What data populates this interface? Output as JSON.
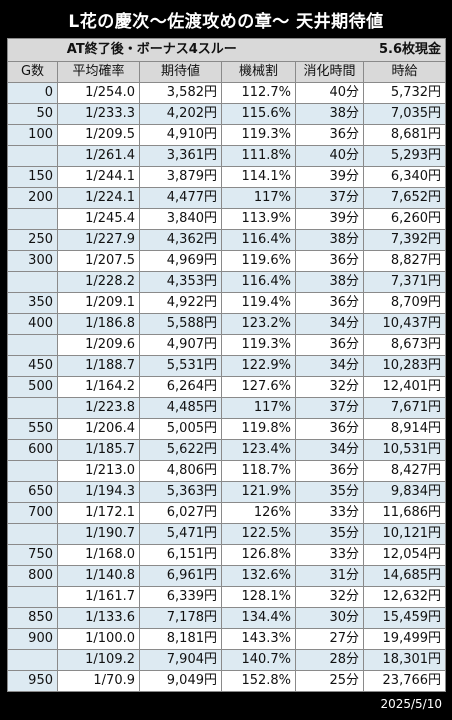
{
  "title": "L花の慶次～佐渡攻めの章～ 天井期待値",
  "subtitle_left": "AT終了後・ボーナス4スルー",
  "subtitle_right": "5.6枚現金",
  "headers": [
    "G数",
    "平均確率",
    "期待値",
    "機械割",
    "消化時間",
    "時給"
  ],
  "rows": [
    [
      "0",
      "1/254.0",
      "3,582円",
      "112.7%",
      "40分",
      "5,732円"
    ],
    [
      "50",
      "1/233.3",
      "4,202円",
      "115.6%",
      "38分",
      "7,035円"
    ],
    [
      "100",
      "1/209.5",
      "4,910円",
      "119.3%",
      "36分",
      "8,681円"
    ],
    [
      "",
      "1/261.4",
      "3,361円",
      "111.8%",
      "40分",
      "5,293円"
    ],
    [
      "150",
      "1/244.1",
      "3,879円",
      "114.1%",
      "39分",
      "6,340円"
    ],
    [
      "200",
      "1/224.1",
      "4,477円",
      "117%",
      "37分",
      "7,652円"
    ],
    [
      "",
      "1/245.4",
      "3,840円",
      "113.9%",
      "39分",
      "6,260円"
    ],
    [
      "250",
      "1/227.9",
      "4,362円",
      "116.4%",
      "38分",
      "7,392円"
    ],
    [
      "300",
      "1/207.5",
      "4,969円",
      "119.6%",
      "36分",
      "8,827円"
    ],
    [
      "",
      "1/228.2",
      "4,353円",
      "116.4%",
      "38分",
      "7,371円"
    ],
    [
      "350",
      "1/209.1",
      "4,922円",
      "119.4%",
      "36分",
      "8,709円"
    ],
    [
      "400",
      "1/186.8",
      "5,588円",
      "123.2%",
      "34分",
      "10,437円"
    ],
    [
      "",
      "1/209.6",
      "4,907円",
      "119.3%",
      "36分",
      "8,673円"
    ],
    [
      "450",
      "1/188.7",
      "5,531円",
      "122.9%",
      "34分",
      "10,283円"
    ],
    [
      "500",
      "1/164.2",
      "6,264円",
      "127.6%",
      "32分",
      "12,401円"
    ],
    [
      "",
      "1/223.8",
      "4,485円",
      "117%",
      "37分",
      "7,671円"
    ],
    [
      "550",
      "1/206.4",
      "5,005円",
      "119.8%",
      "36分",
      "8,914円"
    ],
    [
      "600",
      "1/185.7",
      "5,622円",
      "123.4%",
      "34分",
      "10,531円"
    ],
    [
      "",
      "1/213.0",
      "4,806円",
      "118.7%",
      "36分",
      "8,427円"
    ],
    [
      "650",
      "1/194.3",
      "5,363円",
      "121.9%",
      "35分",
      "9,834円"
    ],
    [
      "700",
      "1/172.1",
      "6,027円",
      "126%",
      "33分",
      "11,686円"
    ],
    [
      "",
      "1/190.7",
      "5,471円",
      "122.5%",
      "35分",
      "10,121円"
    ],
    [
      "750",
      "1/168.0",
      "6,151円",
      "126.8%",
      "33分",
      "12,054円"
    ],
    [
      "800",
      "1/140.8",
      "6,961円",
      "132.6%",
      "31分",
      "14,685円"
    ],
    [
      "",
      "1/161.7",
      "6,339円",
      "128.1%",
      "32分",
      "12,632円"
    ],
    [
      "850",
      "1/133.6",
      "7,178円",
      "134.4%",
      "30分",
      "15,459円"
    ],
    [
      "900",
      "1/100.0",
      "8,181円",
      "143.3%",
      "27分",
      "19,499円"
    ],
    [
      "",
      "1/109.2",
      "7,904円",
      "140.7%",
      "28分",
      "18,301円"
    ],
    [
      "950",
      "1/70.9",
      "9,049円",
      "152.8%",
      "25分",
      "23,766円"
    ]
  ],
  "date": "2025/5/10"
}
